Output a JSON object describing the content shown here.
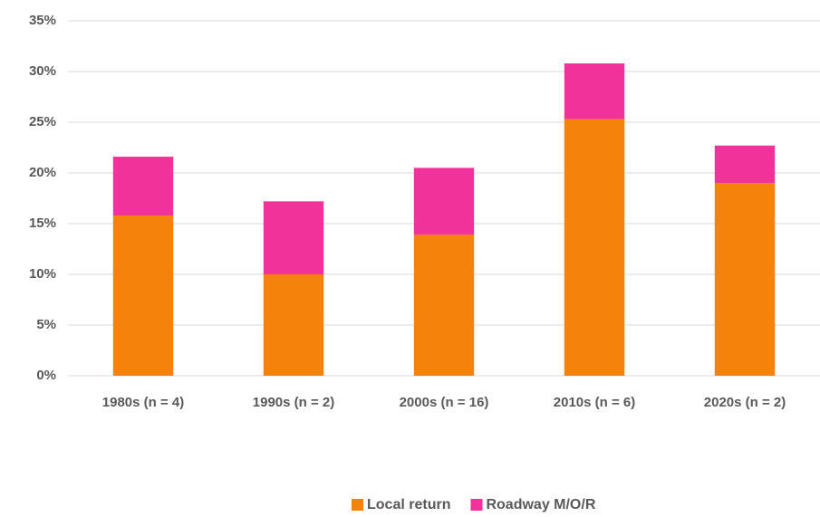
{
  "chart_data": {
    "type": "stacked_bar",
    "categories": [
      "1980s (n = 4)",
      "1990s (n = 2)",
      "2000s (n = 16)",
      "2010s (n = 6)",
      "2020s (n = 2)"
    ],
    "series": [
      {
        "name": "Local return",
        "color": "#f5820a",
        "values": [
          15.8,
          10.0,
          13.9,
          25.3,
          19.0
        ]
      },
      {
        "name": "Roadway M/O/R",
        "color": "#f0329a",
        "values": [
          5.8,
          7.2,
          6.6,
          5.5,
          3.7
        ]
      }
    ],
    "ylim": [
      0,
      35
    ],
    "yticks": [
      {
        "value": 0,
        "label": "0%"
      },
      {
        "value": 5,
        "label": "5%"
      },
      {
        "value": 10,
        "label": "10%"
      },
      {
        "value": 15,
        "label": "15%"
      },
      {
        "value": 20,
        "label": "20%"
      },
      {
        "value": 25,
        "label": "25%"
      },
      {
        "value": 30,
        "label": "30%"
      },
      {
        "value": 35,
        "label": "35%"
      }
    ],
    "grid": true,
    "legend": "bottom"
  }
}
